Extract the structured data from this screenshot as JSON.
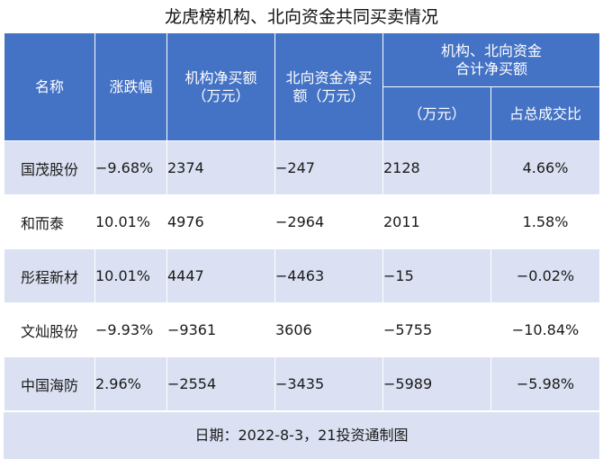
{
  "title": "龙虎榜机构、北向资金共同买卖情况",
  "headers": {
    "name": "名称",
    "change": "涨跌幅",
    "inst_line1": "机构净买额",
    "inst_line2": "（万元）",
    "north_line1": "北向资金净买",
    "north_line2": "额（万元）",
    "combined_group_line1": "机构、北向资金",
    "combined_group_line2": "合计净买额",
    "combined_amount": "（万元）",
    "combined_ratio": "占总成交比"
  },
  "rows": [
    {
      "name": "国茂股份",
      "change": "−9.68%",
      "inst": "2374",
      "north": "−247",
      "total": "2128",
      "ratio": "4.66%"
    },
    {
      "name": "和而泰",
      "change": "10.01%",
      "inst": "4976",
      "north": "−2964",
      "total": "2011",
      "ratio": "1.58%"
    },
    {
      "name": "彤程新材",
      "change": "10.01%",
      "inst": "4447",
      "north": "−4463",
      "total": "−15",
      "ratio": "−0.02%"
    },
    {
      "name": "文灿股份",
      "change": "−9.93%",
      "inst": "−9361",
      "north": "3606",
      "total": "−5755",
      "ratio": "−10.84%"
    },
    {
      "name": "中国海防",
      "change": "2.96%",
      "inst": "−2554",
      "north": "−3435",
      "total": "−5989",
      "ratio": "−5.98%"
    }
  ],
  "footer": "日期：2022-8-3，21投资通制图",
  "colors": {
    "header_bg": "#4472c4",
    "band_bg": "#dbe1f2"
  }
}
